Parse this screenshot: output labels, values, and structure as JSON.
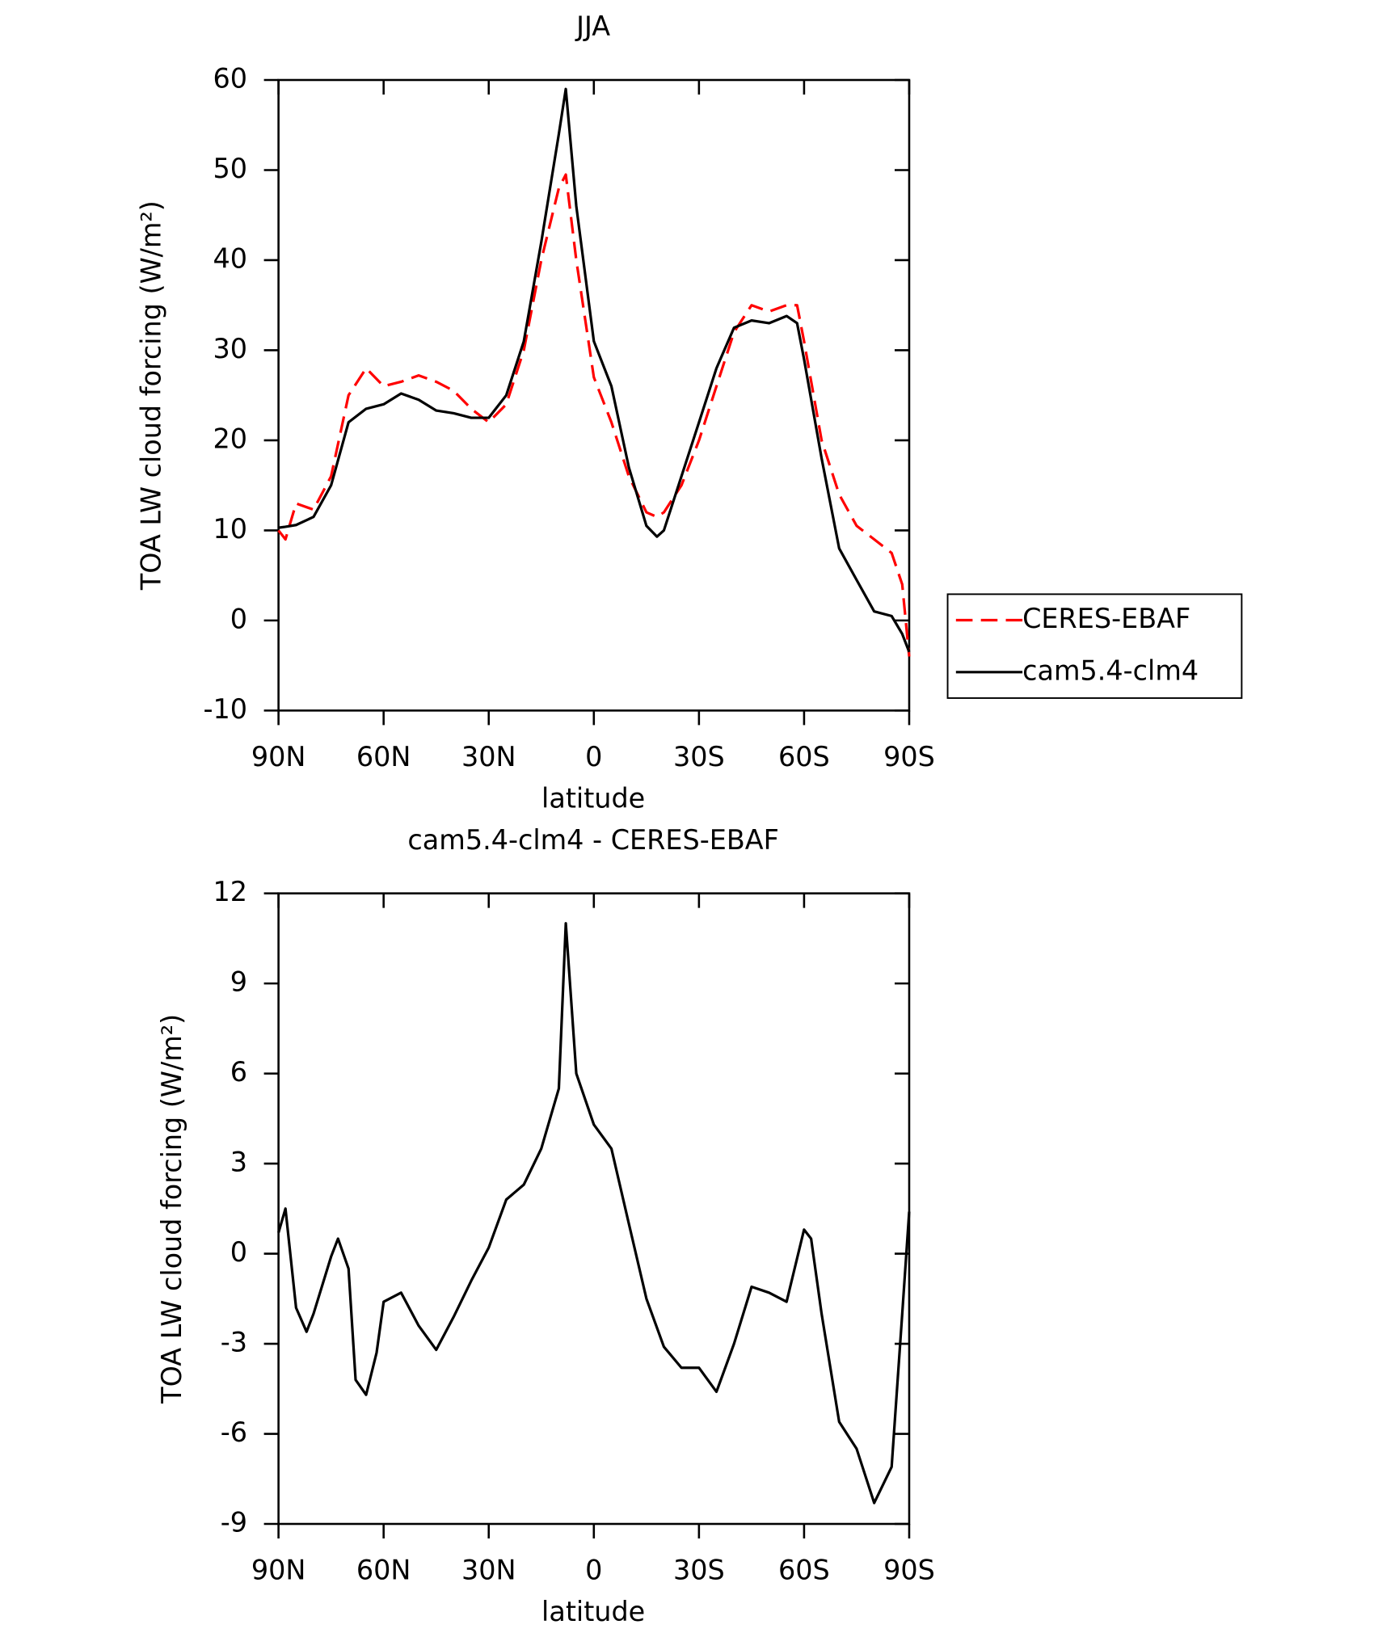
{
  "chart_data": [
    {
      "type": "line",
      "title": "JJA",
      "xlabel": "latitude",
      "ylabel": "TOA LW cloud forcing (W/m²)",
      "x": [
        90,
        88,
        85,
        80,
        75,
        70,
        65,
        60,
        55,
        50,
        45,
        40,
        35,
        30,
        25,
        20,
        15,
        10,
        8,
        5,
        0,
        -5,
        -10,
        -15,
        -18,
        -20,
        -25,
        -30,
        -35,
        -40,
        -45,
        -50,
        -55,
        -58,
        -60,
        -65,
        -70,
        -75,
        -80,
        -85,
        -88,
        -90
      ],
      "series": [
        {
          "name": "CERES-EBAF",
          "color": "#ff0000",
          "dashed": true,
          "values": [
            10,
            9,
            13,
            12.3,
            16,
            25,
            28,
            26,
            26.5,
            27.2,
            26.5,
            25.5,
            23.5,
            22,
            24,
            30,
            40,
            48,
            49.5,
            40,
            27,
            22,
            16,
            12,
            11.5,
            12,
            15,
            20,
            26,
            32,
            35,
            34.3,
            35,
            35,
            31,
            20,
            14,
            10.5,
            9,
            7.5,
            4,
            -4
          ]
        },
        {
          "name": "cam5.4-clm4",
          "color": "#000000",
          "dashed": false,
          "values": [
            10.3,
            10.4,
            10.6,
            11.5,
            15,
            22,
            23.5,
            24,
            25.2,
            24.5,
            23.3,
            23,
            22.5,
            22.5,
            25,
            31,
            42,
            54,
            59,
            46,
            31,
            26,
            17,
            10.5,
            9.3,
            10,
            16,
            22,
            28,
            32.5,
            33.3,
            33,
            33.8,
            33,
            29,
            18,
            8,
            4.5,
            1,
            0.5,
            -1.5,
            -3.5
          ]
        }
      ],
      "xlim": [
        90,
        -90
      ],
      "ylim": [
        -10,
        60
      ],
      "xticks": [
        {
          "value": 90,
          "label": "90N"
        },
        {
          "value": 60,
          "label": "60N"
        },
        {
          "value": 30,
          "label": "30N"
        },
        0,
        {
          "value": -30,
          "label": "30S"
        },
        {
          "value": -60,
          "label": "60S"
        },
        {
          "value": -90,
          "label": "90S"
        }
      ],
      "yticks": [
        -10,
        0,
        10,
        20,
        30,
        40,
        50,
        60
      ],
      "legend": "right"
    },
    {
      "type": "line",
      "title": "cam5.4-clm4 - CERES-EBAF",
      "xlabel": "latitude",
      "ylabel": "TOA LW cloud forcing (W/m²)",
      "x": [
        90,
        88,
        85,
        82,
        80,
        75,
        73,
        70,
        68,
        65,
        62,
        60,
        55,
        50,
        45,
        40,
        35,
        30,
        25,
        20,
        15,
        10,
        8,
        5,
        0,
        -5,
        -10,
        -15,
        -20,
        -25,
        -30,
        -35,
        -40,
        -45,
        -50,
        -55,
        -60,
        -62,
        -65,
        -70,
        -75,
        -80,
        -85,
        -88,
        -90
      ],
      "series": [
        {
          "color": "#000000",
          "dashed": false,
          "values": [
            0.7,
            1.5,
            -1.8,
            -2.6,
            -2,
            -0.1,
            0.5,
            -0.5,
            -4.2,
            -4.7,
            -3.3,
            -1.6,
            -1.3,
            -2.4,
            -3.2,
            -2.1,
            -0.9,
            0.2,
            1.8,
            2.3,
            3.5,
            5.5,
            11,
            6,
            4.3,
            3.5,
            1,
            -1.5,
            -3.1,
            -3.8,
            -3.8,
            -4.6,
            -3,
            -1.1,
            -1.3,
            -1.6,
            0.8,
            0.5,
            -2,
            -5.6,
            -6.5,
            -8.3,
            -7.1,
            -2,
            1.4
          ]
        }
      ],
      "xlim": [
        90,
        -90
      ],
      "ylim": [
        -9,
        12
      ],
      "xticks": [
        {
          "value": 90,
          "label": "90N"
        },
        {
          "value": 60,
          "label": "60N"
        },
        {
          "value": 30,
          "label": "30N"
        },
        0,
        {
          "value": -30,
          "label": "30S"
        },
        {
          "value": -60,
          "label": "60S"
        },
        {
          "value": -90,
          "label": "90S"
        }
      ],
      "yticks": [
        -9,
        -6,
        -3,
        0,
        3,
        6,
        9,
        12
      ]
    }
  ]
}
